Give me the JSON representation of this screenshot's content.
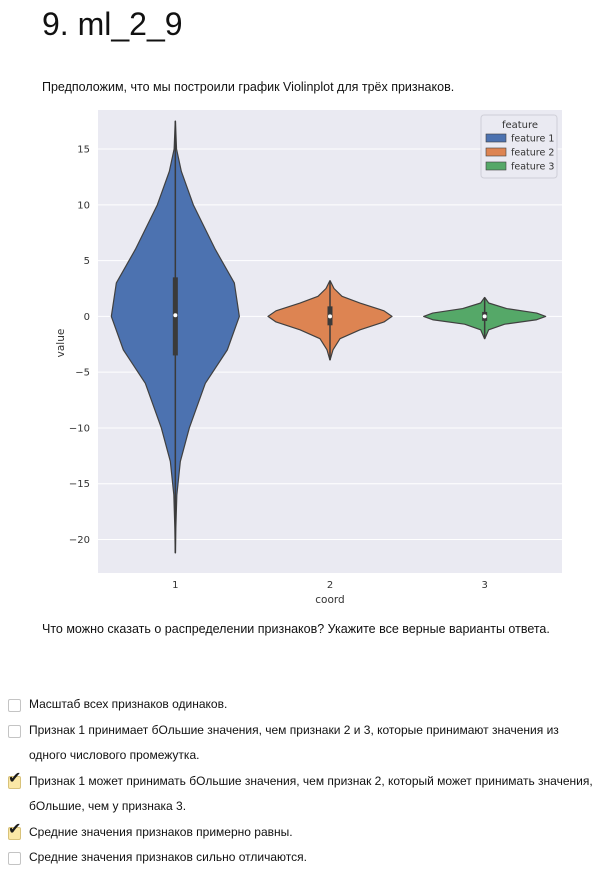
{
  "page": {
    "title": "9. ml_2_9",
    "question": "Предположим, что мы построили график Violinplot для трёх признаков.",
    "prompt": "Что можно сказать о распределении признаков? Укажите все верные варианты ответа."
  },
  "options": [
    {
      "text": "Масштаб всех признаков одинаков.",
      "checked": false
    },
    {
      "text": "Признак 1 принимает бОльшие значения, чем признаки 2 и 3, которые принимают значения из одного числового промежутка.",
      "checked": false
    },
    {
      "text": "Признак 1 может принимать бОльшие значения, чем признак 2, который может принимать значения, бОльшие, чем у признака 3.",
      "checked": true
    },
    {
      "text": "Средние значения признаков примерно равны.",
      "checked": true
    },
    {
      "text": "Средние значения признаков сильно отличаются.",
      "checked": false
    }
  ],
  "check_glyph": "✔",
  "colors": {
    "feature1": "#4c72b0",
    "feature2": "#dd8452",
    "feature3": "#55a868",
    "plot_bg": "#eaeaf2",
    "checked_bg": "#fbe8a6"
  },
  "chart_data": {
    "type": "violin",
    "xlabel": "coord",
    "ylabel": "value",
    "categories": [
      "1",
      "2",
      "3"
    ],
    "ylim": [
      -23,
      18.5
    ],
    "yticks": [
      15,
      10,
      5,
      0,
      -5,
      -10,
      -15,
      -20
    ],
    "ytick_labels": [
      "15",
      "10",
      "5",
      "0",
      "−5",
      "−10",
      "−15",
      "−20"
    ],
    "grid": true,
    "legend": {
      "title": "feature",
      "placement": "top-right",
      "entries": [
        "feature 1",
        "feature 2",
        "feature 3"
      ]
    },
    "series": [
      {
        "name": "feature 1",
        "category": "1",
        "min": -21.2,
        "max": 17.5,
        "q1": -3.5,
        "median": 0.1,
        "q3": 3.5,
        "profile_y": [
          17.5,
          15,
          13,
          10,
          6,
          3,
          0,
          -3,
          -6,
          -10,
          -13,
          -16,
          -19,
          -21.2
        ],
        "profile_w": [
          0.1,
          1.2,
          6,
          18,
          40,
          59,
          64,
          52,
          30,
          14,
          5,
          1.5,
          0.5,
          0.1
        ]
      },
      {
        "name": "feature 2",
        "category": "2",
        "min": -3.9,
        "max": 3.2,
        "q1": -0.8,
        "median": 0,
        "q3": 0.9,
        "profile_y": [
          3.2,
          2.5,
          1.8,
          1.2,
          0.5,
          0,
          -0.5,
          -1.2,
          -2,
          -3,
          -3.9
        ],
        "profile_w": [
          0.1,
          4,
          12,
          30,
          54,
          62,
          54,
          30,
          10,
          3,
          0.1
        ]
      },
      {
        "name": "feature 3",
        "category": "3",
        "min": -2,
        "max": 1.7,
        "q1": -0.4,
        "median": 0,
        "q3": 0.4,
        "profile_y": [
          1.7,
          1.2,
          0.7,
          0.3,
          0,
          -0.3,
          -0.7,
          -1.2,
          -2
        ],
        "profile_w": [
          0.1,
          4,
          22,
          52,
          61,
          52,
          20,
          4,
          0.1
        ]
      }
    ]
  }
}
